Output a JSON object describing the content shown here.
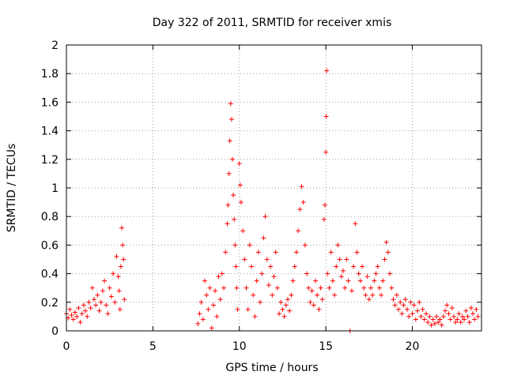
{
  "chart_data": {
    "type": "scatter",
    "title": "Day 322 of 2011, SRMTID for receiver xmis",
    "xlabel": "GPS time / hours",
    "ylabel": "SRMTID / TECUs",
    "xlim": [
      0,
      24
    ],
    "ylim": [
      0,
      2
    ],
    "x_ticks": [
      0,
      5,
      10,
      15,
      20
    ],
    "x_tick_labels": [
      "0",
      "5",
      "10",
      "15",
      "20"
    ],
    "y_ticks": [
      0,
      0.2,
      0.4,
      0.6,
      0.8,
      1,
      1.2,
      1.4,
      1.6,
      1.8,
      2
    ],
    "y_tick_labels": [
      "0",
      "0.2",
      "0.4",
      "0.6",
      "0.8",
      "1",
      "1.2",
      "1.4",
      "1.6",
      "1.8",
      "2"
    ],
    "grid": true,
    "marker": "+",
    "color": "#ff0000",
    "series": [
      {
        "name": "SRMTID",
        "points": [
          [
            0.0,
            0.12
          ],
          [
            0.1,
            0.09
          ],
          [
            0.2,
            0.15
          ],
          [
            0.3,
            0.11
          ],
          [
            0.4,
            0.08
          ],
          [
            0.5,
            0.13
          ],
          [
            0.6,
            0.1
          ],
          [
            0.7,
            0.16
          ],
          [
            0.8,
            0.06
          ],
          [
            0.9,
            0.12
          ],
          [
            1.0,
            0.18
          ],
          [
            1.1,
            0.14
          ],
          [
            1.2,
            0.1
          ],
          [
            1.3,
            0.2
          ],
          [
            1.4,
            0.16
          ],
          [
            1.5,
            0.3
          ],
          [
            1.6,
            0.22
          ],
          [
            1.7,
            0.18
          ],
          [
            1.8,
            0.25
          ],
          [
            1.9,
            0.14
          ],
          [
            2.0,
            0.2
          ],
          [
            2.1,
            0.28
          ],
          [
            2.2,
            0.35
          ],
          [
            2.3,
            0.18
          ],
          [
            2.4,
            0.12
          ],
          [
            2.5,
            0.3
          ],
          [
            2.6,
            0.24
          ],
          [
            2.7,
            0.4
          ],
          [
            2.8,
            0.2
          ],
          [
            2.9,
            0.52
          ],
          [
            3.0,
            0.38
          ],
          [
            3.05,
            0.28
          ],
          [
            3.1,
            0.15
          ],
          [
            3.15,
            0.45
          ],
          [
            3.2,
            0.72
          ],
          [
            3.25,
            0.6
          ],
          [
            3.3,
            0.5
          ],
          [
            3.35,
            0.22
          ],
          [
            7.6,
            0.05
          ],
          [
            7.7,
            0.12
          ],
          [
            7.8,
            0.2
          ],
          [
            7.9,
            0.08
          ],
          [
            8.0,
            0.35
          ],
          [
            8.1,
            0.25
          ],
          [
            8.2,
            0.15
          ],
          [
            8.3,
            0.3
          ],
          [
            8.4,
            0.02
          ],
          [
            8.5,
            0.18
          ],
          [
            8.6,
            0.28
          ],
          [
            8.7,
            0.1
          ],
          [
            8.8,
            0.38
          ],
          [
            8.9,
            0.22
          ],
          [
            9.0,
            0.4
          ],
          [
            9.1,
            0.3
          ],
          [
            9.2,
            0.55
          ],
          [
            9.3,
            0.75
          ],
          [
            9.35,
            0.88
          ],
          [
            9.4,
            1.1
          ],
          [
            9.45,
            1.33
          ],
          [
            9.5,
            1.59
          ],
          [
            9.55,
            1.48
          ],
          [
            9.6,
            1.2
          ],
          [
            9.65,
            0.95
          ],
          [
            9.7,
            0.78
          ],
          [
            9.75,
            0.6
          ],
          [
            9.8,
            0.45
          ],
          [
            9.85,
            0.3
          ],
          [
            9.9,
            0.15
          ],
          [
            10.0,
            1.17
          ],
          [
            10.05,
            1.02
          ],
          [
            10.1,
            0.9
          ],
          [
            10.2,
            0.7
          ],
          [
            10.3,
            0.5
          ],
          [
            10.4,
            0.3
          ],
          [
            10.5,
            0.15
          ],
          [
            10.6,
            0.6
          ],
          [
            10.7,
            0.45
          ],
          [
            10.8,
            0.25
          ],
          [
            10.9,
            0.1
          ],
          [
            11.0,
            0.35
          ],
          [
            11.1,
            0.55
          ],
          [
            11.2,
            0.2
          ],
          [
            11.3,
            0.4
          ],
          [
            11.4,
            0.65
          ],
          [
            11.5,
            0.8
          ],
          [
            11.6,
            0.5
          ],
          [
            11.7,
            0.32
          ],
          [
            11.8,
            0.45
          ],
          [
            11.9,
            0.25
          ],
          [
            12.0,
            0.38
          ],
          [
            12.1,
            0.55
          ],
          [
            12.2,
            0.3
          ],
          [
            12.3,
            0.12
          ],
          [
            12.4,
            0.2
          ],
          [
            12.5,
            0.15
          ],
          [
            12.6,
            0.1
          ],
          [
            12.7,
            0.18
          ],
          [
            12.8,
            0.22
          ],
          [
            12.9,
            0.14
          ],
          [
            13.0,
            0.25
          ],
          [
            13.1,
            0.35
          ],
          [
            13.2,
            0.45
          ],
          [
            13.3,
            0.55
          ],
          [
            13.4,
            0.7
          ],
          [
            13.5,
            0.85
          ],
          [
            13.6,
            1.01
          ],
          [
            13.7,
            0.9
          ],
          [
            13.8,
            0.6
          ],
          [
            13.9,
            0.4
          ],
          [
            14.0,
            0.3
          ],
          [
            14.1,
            0.2
          ],
          [
            14.2,
            0.28
          ],
          [
            14.3,
            0.18
          ],
          [
            14.4,
            0.35
          ],
          [
            14.5,
            0.25
          ],
          [
            14.6,
            0.15
          ],
          [
            14.7,
            0.3
          ],
          [
            14.8,
            0.22
          ],
          [
            14.9,
            0.78
          ],
          [
            14.95,
            0.88
          ],
          [
            15.0,
            1.25
          ],
          [
            15.02,
            1.5
          ],
          [
            15.05,
            1.82
          ],
          [
            15.1,
            0.4
          ],
          [
            15.2,
            0.3
          ],
          [
            15.3,
            0.55
          ],
          [
            15.4,
            0.35
          ],
          [
            15.5,
            0.25
          ],
          [
            15.6,
            0.45
          ],
          [
            15.7,
            0.6
          ],
          [
            15.8,
            0.5
          ],
          [
            15.9,
            0.38
          ],
          [
            16.0,
            0.42
          ],
          [
            16.1,
            0.3
          ],
          [
            16.2,
            0.5
          ],
          [
            16.3,
            0.35
          ],
          [
            16.4,
            0.0
          ],
          [
            16.5,
            0.28
          ],
          [
            16.6,
            0.45
          ],
          [
            16.7,
            0.75
          ],
          [
            16.8,
            0.55
          ],
          [
            16.9,
            0.4
          ],
          [
            17.0,
            0.35
          ],
          [
            17.1,
            0.45
          ],
          [
            17.2,
            0.3
          ],
          [
            17.3,
            0.25
          ],
          [
            17.4,
            0.38
          ],
          [
            17.5,
            0.22
          ],
          [
            17.6,
            0.3
          ],
          [
            17.7,
            0.25
          ],
          [
            17.8,
            0.35
          ],
          [
            17.9,
            0.4
          ],
          [
            18.0,
            0.45
          ],
          [
            18.1,
            0.3
          ],
          [
            18.2,
            0.25
          ],
          [
            18.3,
            0.35
          ],
          [
            18.4,
            0.5
          ],
          [
            18.5,
            0.62
          ],
          [
            18.6,
            0.55
          ],
          [
            18.7,
            0.4
          ],
          [
            18.8,
            0.3
          ],
          [
            18.9,
            0.22
          ],
          [
            19.0,
            0.18
          ],
          [
            19.1,
            0.25
          ],
          [
            19.2,
            0.15
          ],
          [
            19.3,
            0.2
          ],
          [
            19.4,
            0.12
          ],
          [
            19.5,
            0.18
          ],
          [
            19.6,
            0.22
          ],
          [
            19.7,
            0.15
          ],
          [
            19.8,
            0.1
          ],
          [
            19.9,
            0.2
          ],
          [
            20.0,
            0.12
          ],
          [
            20.1,
            0.18
          ],
          [
            20.2,
            0.08
          ],
          [
            20.3,
            0.14
          ],
          [
            20.4,
            0.2
          ],
          [
            20.5,
            0.1
          ],
          [
            20.6,
            0.15
          ],
          [
            20.7,
            0.08
          ],
          [
            20.8,
            0.12
          ],
          [
            20.9,
            0.06
          ],
          [
            21.0,
            0.1
          ],
          [
            21.1,
            0.04
          ],
          [
            21.2,
            0.08
          ],
          [
            21.3,
            0.05
          ],
          [
            21.4,
            0.1
          ],
          [
            21.5,
            0.06
          ],
          [
            21.6,
            0.08
          ],
          [
            21.7,
            0.04
          ],
          [
            21.8,
            0.1
          ],
          [
            21.9,
            0.14
          ],
          [
            22.0,
            0.18
          ],
          [
            22.1,
            0.12
          ],
          [
            22.2,
            0.08
          ],
          [
            22.3,
            0.16
          ],
          [
            22.4,
            0.1
          ],
          [
            22.5,
            0.06
          ],
          [
            22.6,
            0.08
          ],
          [
            22.7,
            0.12
          ],
          [
            22.8,
            0.06
          ],
          [
            22.9,
            0.1
          ],
          [
            23.0,
            0.08
          ],
          [
            23.1,
            0.14
          ],
          [
            23.2,
            0.1
          ],
          [
            23.3,
            0.06
          ],
          [
            23.4,
            0.16
          ],
          [
            23.5,
            0.12
          ],
          [
            23.6,
            0.08
          ],
          [
            23.7,
            0.15
          ],
          [
            23.8,
            0.1
          ]
        ]
      }
    ]
  }
}
